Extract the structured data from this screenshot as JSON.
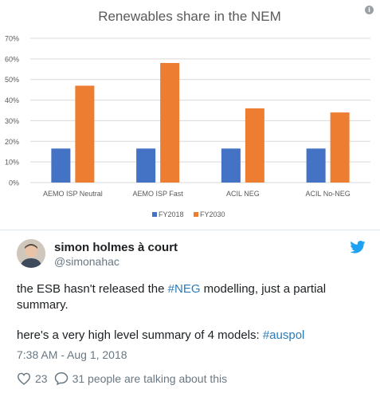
{
  "info_icon": "i",
  "chart_data": {
    "type": "bar",
    "title": "Renewables share in the NEM",
    "categories": [
      "AEMO ISP Neutral",
      "AEMO ISP Fast",
      "ACIL NEG",
      "ACIL No-NEG"
    ],
    "series": [
      {
        "name": "FY2018",
        "color": "#4472c4",
        "values": [
          16.5,
          16.5,
          16.5,
          16.5
        ]
      },
      {
        "name": "FY2030",
        "color": "#ed7d31",
        "values": [
          47,
          58,
          36,
          34
        ]
      }
    ],
    "ylim": [
      0,
      70
    ],
    "yticks": [
      "0%",
      "10%",
      "20%",
      "30%",
      "40%",
      "50%",
      "60%",
      "70%"
    ],
    "grid": true,
    "legend": "bottom"
  },
  "tweet": {
    "author_name": "simon holmes à court",
    "author_handle": "@simonahac",
    "text1_before": "the ESB hasn't released the ",
    "text1_hashtag": "#NEG",
    "text1_after": " modelling, just a partial summary.",
    "text2_before": "here's a very high level summary of 4 models: ",
    "text2_hashtag": "#auspol",
    "timestamp": "7:38 AM - Aug 1, 2018",
    "likes": "23",
    "conversation": "31 people are talking about this",
    "colors": {
      "link": "#2b7bb9",
      "meta": "#697882",
      "twitter_blue": "#1da1f2"
    }
  },
  "icons": {
    "like": "heart-icon",
    "reply": "speech-bubble-icon",
    "brand": "twitter-bird-icon",
    "info": "info-icon"
  }
}
